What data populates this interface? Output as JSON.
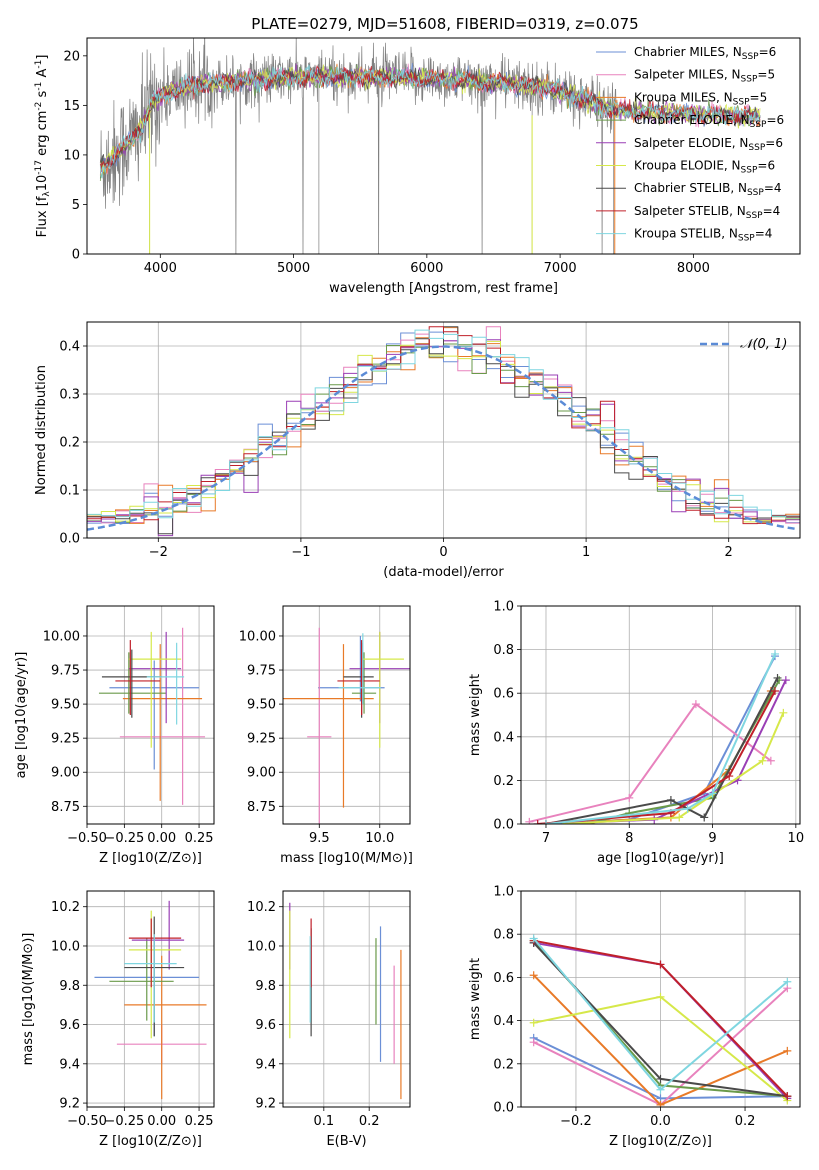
{
  "figure": {
    "title": "PLATE=0279, MJD=51608, FIBERID=0319, z=0.075"
  },
  "models": [
    {
      "name": "Chabrier MILES",
      "nssp": "6",
      "color": "#6b8fd6"
    },
    {
      "name": "Salpeter MILES",
      "nssp": "5",
      "color": "#e882bd"
    },
    {
      "name": "Kroupa MILES",
      "nssp": "5",
      "color": "#e87a28"
    },
    {
      "name": "Chabrier ELODIE",
      "nssp": "6",
      "color": "#6a9a4a"
    },
    {
      "name": "Salpeter ELODIE",
      "nssp": "6",
      "color": "#9a3fb5"
    },
    {
      "name": "Kroupa ELODIE",
      "nssp": "6",
      "color": "#d6e84a"
    },
    {
      "name": "Chabrier STELIB",
      "nssp": "4",
      "color": "#4a4a4a"
    },
    {
      "name": "Salpeter STELIB",
      "nssp": "4",
      "color": "#c0202a"
    },
    {
      "name": "Kroupa STELIB",
      "nssp": "4",
      "color": "#7fd6e0"
    }
  ],
  "chart_data": [
    {
      "id": "spectrum",
      "type": "line",
      "xlabel": "wavelength [Angstrom, rest frame]",
      "ylabel_main": "Flux [f",
      "ylabel_sub": "λ",
      "ylabel_rest": "10",
      "ylabel_exp1": "-17",
      "ylabel_mid": " erg cm",
      "ylabel_exp2": "-2",
      "ylabel_s": " s",
      "ylabel_exp3": "-1",
      "ylabel_A": " A",
      "ylabel_exp4": "-1",
      "ylabel_end": "]",
      "xlim": [
        3450,
        8800
      ],
      "ylim": [
        0,
        21.8
      ],
      "xticks": [
        "4000",
        "5000",
        "6000",
        "7000",
        "8000"
      ],
      "yticks": [
        "0",
        "5",
        "10",
        "15",
        "20"
      ],
      "legend_nssp_prefix": "N",
      "legend_nssp_sub": "SSP",
      "data_color": "#808080",
      "data_range": [
        3550,
        7420
      ],
      "continuum": [
        [
          3550,
          8.5
        ],
        [
          3700,
          10.5
        ],
        [
          3850,
          12.5
        ],
        [
          3950,
          15.5
        ],
        [
          4100,
          16.5
        ],
        [
          4300,
          17.2
        ],
        [
          4600,
          17.5
        ],
        [
          5000,
          17.8
        ],
        [
          5400,
          17.9
        ],
        [
          5800,
          17.8
        ],
        [
          6200,
          17.6
        ],
        [
          6600,
          17.2
        ],
        [
          6900,
          16.8
        ],
        [
          7200,
          15.5
        ],
        [
          7420,
          14.5
        ]
      ],
      "model_range": [
        3550,
        8500
      ]
    },
    {
      "id": "residuals",
      "type": "histogram",
      "xlabel": "(data-model)/error",
      "ylabel": "Normed distribution",
      "xlim": [
        -2.5,
        2.5
      ],
      "ylim": [
        0,
        0.45
      ],
      "xticks": [
        "-2",
        "-1",
        "0",
        "1",
        "2"
      ],
      "yticks": [
        "0.0",
        "0.1",
        "0.2",
        "0.3",
        "0.4"
      ],
      "gaussian_label": "𝒩(0, 1)",
      "gaussian_color": "#5b8bd6",
      "bin_width": 0.1
    },
    {
      "id": "age_vs_Z",
      "type": "errorbar",
      "xlabel": "Z [log10(Z/Z⊙)]",
      "ylabel": "age  [log10(age/yr)]",
      "xlim": [
        -0.5,
        0.35
      ],
      "ylim": [
        8.62,
        10.22
      ],
      "xticks": [
        "-0.50",
        "-0.25",
        "0.00",
        "0.25"
      ],
      "yticks": [
        "8.75",
        "9.00",
        "9.25",
        "9.50",
        "9.75",
        "10.00"
      ],
      "points": [
        {
          "x": -0.05,
          "xerr": [
            0.3,
            0.3
          ],
          "y": 9.62,
          "yerr": [
            0.6,
            0.2
          ]
        },
        {
          "x": 0.14,
          "xerr": [
            0.42,
            0.15
          ],
          "y": 9.26,
          "yerr": [
            0.5,
            0.8
          ]
        },
        {
          "x": -0.01,
          "xerr": [
            0.25,
            0.28
          ],
          "y": 9.54,
          "yerr": [
            0.75,
            0.4
          ]
        },
        {
          "x": -0.22,
          "xerr": [
            0.2,
            0.25
          ],
          "y": 9.58,
          "yerr": [
            0.15,
            0.3
          ]
        },
        {
          "x": 0.03,
          "xerr": [
            0.25,
            0.1
          ],
          "y": 9.76,
          "yerr": [
            0.4,
            0.27
          ]
        },
        {
          "x": -0.07,
          "xerr": [
            0.15,
            0.2
          ],
          "y": 9.83,
          "yerr": [
            0.65,
            0.2
          ]
        },
        {
          "x": -0.2,
          "xerr": [
            0.2,
            0.2
          ],
          "y": 9.7,
          "yerr": [
            0.3,
            0.2
          ]
        },
        {
          "x": -0.21,
          "xerr": [
            0.1,
            0.2
          ],
          "y": 9.67,
          "yerr": [
            0.25,
            0.3
          ]
        },
        {
          "x": 0.1,
          "xerr": [
            0.2,
            0.05
          ],
          "y": 9.7,
          "yerr": [
            0.35,
            0.25
          ]
        }
      ]
    },
    {
      "id": "age_vs_mass",
      "type": "errorbar",
      "xlabel": "mass [log10(M/M⊙)]",
      "ylabel": "",
      "xlim": [
        9.2,
        10.25
      ],
      "ylim": [
        8.62,
        10.22
      ],
      "xticks": [
        "9.5",
        "10.0"
      ],
      "yticks": [
        "8.75",
        "9.00",
        "9.25",
        "9.50",
        "9.75",
        "10.00"
      ],
      "points": [
        {
          "x": 9.84,
          "xerr": [
            0.35,
            0.2
          ],
          "y": 9.62,
          "yerr": [
            0.1,
            0.38
          ]
        },
        {
          "x": 9.5,
          "xerr": [
            0.1,
            0.1
          ],
          "y": 9.26,
          "yerr": [
            0.7,
            0.8
          ]
        },
        {
          "x": 9.7,
          "xerr": [
            0.5,
            0.25
          ],
          "y": 9.54,
          "yerr": [
            0.8,
            0.4
          ]
        },
        {
          "x": 9.87,
          "xerr": [
            0.1,
            0.1
          ],
          "y": 9.58,
          "yerr": [
            0.15,
            0.3
          ]
        },
        {
          "x": 10.0,
          "xerr": [
            0.25,
            0.25
          ],
          "y": 9.76,
          "yerr": [
            0.4,
            0.27
          ]
        },
        {
          "x": 10.0,
          "xerr": [
            0.15,
            0.2
          ],
          "y": 9.83,
          "yerr": [
            0.65,
            0.2
          ]
        },
        {
          "x": 9.85,
          "xerr": [
            0.15,
            0.1
          ],
          "y": 9.7,
          "yerr": [
            0.3,
            0.25
          ]
        },
        {
          "x": 9.85,
          "xerr": [
            0.2,
            0.15
          ],
          "y": 9.67,
          "yerr": [
            0.25,
            0.3
          ]
        },
        {
          "x": 9.86,
          "xerr": [
            0.2,
            0.15
          ],
          "y": 9.62,
          "yerr": [
            0.12,
            0.4
          ]
        }
      ]
    },
    {
      "id": "weight_vs_age",
      "type": "line",
      "xlabel": "age  [log10(age/yr)]",
      "ylabel": "mass weight",
      "xlim": [
        6.7,
        10.05
      ],
      "ylim": [
        0,
        1
      ],
      "xticks": [
        "7",
        "8",
        "9",
        "10"
      ],
      "yticks": [
        "0.0",
        "0.2",
        "0.4",
        "0.6",
        "0.8",
        "1.0"
      ],
      "series": [
        {
          "x": [
            6.9,
            8.0,
            8.9,
            9.75
          ],
          "y": [
            0.0,
            0.02,
            0.14,
            0.77
          ]
        },
        {
          "x": [
            6.8,
            8.0,
            8.8,
            9.7
          ],
          "y": [
            0.01,
            0.12,
            0.55,
            0.29
          ]
        },
        {
          "x": [
            7.0,
            8.5,
            9.2,
            9.7
          ],
          "y": [
            0.0,
            0.03,
            0.25,
            0.61
          ]
        },
        {
          "x": [
            7.5,
            8.0,
            9.0,
            9.8
          ],
          "y": [
            0.0,
            0.05,
            0.12,
            0.66
          ]
        },
        {
          "x": [
            7.0,
            8.3,
            9.3,
            9.88
          ],
          "y": [
            0.0,
            0.02,
            0.2,
            0.66
          ]
        },
        {
          "x": [
            7.2,
            8.6,
            9.6,
            9.85
          ],
          "y": [
            0.0,
            0.03,
            0.29,
            0.51
          ]
        },
        {
          "x": [
            7.0,
            8.5,
            8.9,
            9.78
          ],
          "y": [
            0.0,
            0.11,
            0.03,
            0.67
          ]
        },
        {
          "x": [
            6.9,
            8.5,
            9.2,
            9.75
          ],
          "y": [
            0.0,
            0.05,
            0.22,
            0.61
          ]
        },
        {
          "x": [
            7.0,
            8.7,
            9.0,
            9.75
          ],
          "y": [
            0.0,
            0.07,
            0.14,
            0.78
          ]
        }
      ]
    },
    {
      "id": "mass_vs_Z",
      "type": "errorbar",
      "xlabel": "Z [log10(Z/Z⊙)]",
      "ylabel": "mass [log10(M/M⊙)]",
      "xlim": [
        -0.5,
        0.35
      ],
      "ylim": [
        9.18,
        10.28
      ],
      "xticks": [
        "-0.50",
        "-0.25",
        "0.00",
        "0.25"
      ],
      "yticks": [
        "9.2",
        "9.4",
        "9.6",
        "9.8",
        "10.0",
        "10.2"
      ],
      "points": [
        {
          "x": -0.05,
          "xerr": [
            0.4,
            0.3
          ],
          "y": 9.84,
          "yerr": [
            0.3,
            0.2
          ]
        },
        {
          "x": 0.0,
          "xerr": [
            0.3,
            0.3
          ],
          "y": 9.5,
          "yerr": [
            0.1,
            0.1
          ]
        },
        {
          "x": 0.0,
          "xerr": [
            0.25,
            0.3
          ],
          "y": 9.7,
          "yerr": [
            0.48,
            0.25
          ]
        },
        {
          "x": -0.1,
          "xerr": [
            0.25,
            0.18
          ],
          "y": 9.82,
          "yerr": [
            0.2,
            0.22
          ]
        },
        {
          "x": 0.05,
          "xerr": [
            0.25,
            0.1
          ],
          "y": 10.03,
          "yerr": [
            0.15,
            0.2
          ]
        },
        {
          "x": -0.07,
          "xerr": [
            0.15,
            0.2
          ],
          "y": 9.98,
          "yerr": [
            0.45,
            0.2
          ]
        },
        {
          "x": -0.05,
          "xerr": [
            0.2,
            0.2
          ],
          "y": 9.89,
          "yerr": [
            0.35,
            0.26
          ]
        },
        {
          "x": -0.07,
          "xerr": [
            0.15,
            0.2
          ],
          "y": 10.04,
          "yerr": [
            0.25,
            0.1
          ]
        },
        {
          "x": -0.05,
          "xerr": [
            0.2,
            0.15
          ],
          "y": 9.91,
          "yerr": [
            0.3,
            0.15
          ]
        }
      ]
    },
    {
      "id": "mass_vs_ebv",
      "type": "errorbar",
      "xlabel": "E(B-V)",
      "ylabel": "",
      "xlim": [
        0.01,
        0.29
      ],
      "ylim": [
        9.18,
        10.28
      ],
      "xticks": [
        "0.1",
        "0.2"
      ],
      "yticks": [
        "9.2",
        "9.4",
        "9.6",
        "9.8",
        "10.0",
        "10.2"
      ],
      "points": [
        {
          "x": 0.225,
          "y": 9.84,
          "yerr": [
            0.43,
            0.26
          ]
        },
        {
          "x": 0.255,
          "y": 9.5,
          "yerr": [
            0.1,
            0.4
          ]
        },
        {
          "x": 0.27,
          "y": 9.7,
          "yerr": [
            0.48,
            0.28
          ]
        },
        {
          "x": 0.215,
          "y": 9.82,
          "yerr": [
            0.22,
            0.22
          ]
        },
        {
          "x": 0.025,
          "y": 10.03,
          "yerr": [
            0.15,
            0.19
          ]
        },
        {
          "x": 0.025,
          "y": 9.98,
          "yerr": [
            0.45,
            0.2
          ]
        },
        {
          "x": 0.072,
          "y": 9.89,
          "yerr": [
            0.35,
            0.2
          ]
        },
        {
          "x": 0.072,
          "y": 10.04,
          "yerr": [
            0.25,
            0.1
          ]
        },
        {
          "x": 0.07,
          "y": 9.91,
          "yerr": [
            0.3,
            0.14
          ]
        }
      ]
    },
    {
      "id": "weight_vs_Z",
      "type": "line",
      "xlabel": "Z [log10(Z/Z⊙)]",
      "ylabel": "mass weight",
      "xlim": [
        -0.33,
        0.33
      ],
      "ylim": [
        0,
        1
      ],
      "xticks": [
        "-0.2",
        "0.0",
        "0.2"
      ],
      "yticks": [
        "0.0",
        "0.2",
        "0.4",
        "0.6",
        "0.8",
        "1.0"
      ],
      "series": [
        {
          "x": [
            -0.3,
            0.0,
            0.3
          ],
          "y": [
            0.32,
            0.04,
            0.05
          ]
        },
        {
          "x": [
            -0.3,
            0.0,
            0.3
          ],
          "y": [
            0.3,
            0.01,
            0.55
          ]
        },
        {
          "x": [
            -0.3,
            0.0,
            0.3
          ],
          "y": [
            0.61,
            0.01,
            0.26
          ]
        },
        {
          "x": [
            -0.3,
            0.0,
            0.3
          ],
          "y": [
            0.77,
            0.1,
            0.05
          ]
        },
        {
          "x": [
            -0.3,
            0.0,
            0.3
          ],
          "y": [
            0.76,
            0.66,
            0.04
          ]
        },
        {
          "x": [
            -0.3,
            0.0,
            0.3
          ],
          "y": [
            0.39,
            0.51,
            0.03
          ]
        },
        {
          "x": [
            -0.3,
            0.0,
            0.3
          ],
          "y": [
            0.76,
            0.13,
            0.05
          ]
        },
        {
          "x": [
            -0.3,
            0.0,
            0.3
          ],
          "y": [
            0.77,
            0.66,
            0.05
          ]
        },
        {
          "x": [
            -0.3,
            0.0,
            0.3
          ],
          "y": [
            0.78,
            0.08,
            0.58
          ]
        }
      ]
    }
  ]
}
